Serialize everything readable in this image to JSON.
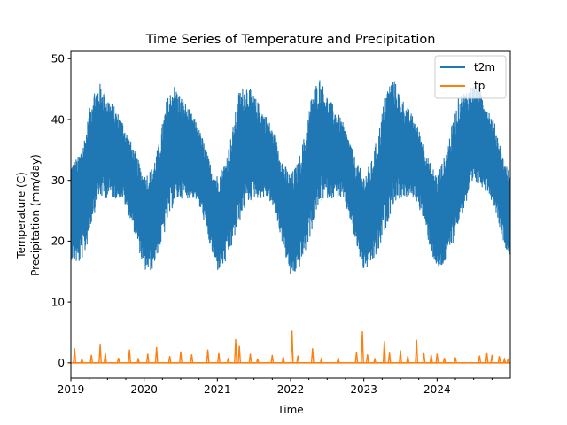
{
  "chart_data": {
    "type": "line",
    "title": "Time Series of Temperature and Precipitation",
    "xlabel": "Time",
    "ylabel_lines": [
      "Temperature (C)",
      "Precipitation (mm/day)"
    ],
    "xlim": [
      2019.0,
      2025.0
    ],
    "ylim": [
      -2.5,
      51.2
    ],
    "xticks": [
      {
        "value": 2019,
        "label": "2019"
      },
      {
        "value": 2020,
        "label": "2020"
      },
      {
        "value": 2021,
        "label": "2021"
      },
      {
        "value": 2022,
        "label": "2022"
      },
      {
        "value": 2023,
        "label": "2023"
      },
      {
        "value": 2024,
        "label": "2024"
      }
    ],
    "yticks": [
      {
        "value": 0,
        "label": "0"
      },
      {
        "value": 10,
        "label": "10"
      },
      {
        "value": 20,
        "label": "20"
      },
      {
        "value": 30,
        "label": "30"
      },
      {
        "value": 40,
        "label": "40"
      },
      {
        "value": 50,
        "label": "50"
      }
    ],
    "grid": false,
    "legend_position": "top-right",
    "series": [
      {
        "name": "t2m",
        "color": "#1f77b4",
        "style": "hourly band",
        "x": [
          2019.0,
          2019.1,
          2019.2,
          2019.3,
          2019.4,
          2019.5,
          2019.6,
          2019.7,
          2019.8,
          2019.9,
          2020.0,
          2020.1,
          2020.2,
          2020.3,
          2020.4,
          2020.5,
          2020.6,
          2020.7,
          2020.8,
          2020.9,
          2021.0,
          2021.1,
          2021.2,
          2021.3,
          2021.4,
          2021.5,
          2021.6,
          2021.7,
          2021.8,
          2021.9,
          2022.0,
          2022.1,
          2022.2,
          2022.3,
          2022.4,
          2022.5,
          2022.6,
          2022.7,
          2022.8,
          2022.9,
          2023.0,
          2023.1,
          2023.2,
          2023.3,
          2023.4,
          2023.5,
          2023.6,
          2023.7,
          2023.8,
          2023.9,
          2024.0,
          2024.1,
          2024.2,
          2024.3,
          2024.4,
          2024.5,
          2024.6,
          2024.7,
          2024.8,
          2024.9,
          2025.0
        ],
        "low": [
          17,
          16,
          18,
          24,
          27,
          27,
          27,
          27,
          24,
          20,
          15,
          15,
          18,
          22,
          26,
          27,
          27,
          27,
          24,
          19,
          15,
          16,
          19,
          23,
          26,
          27,
          27,
          27,
          24,
          19,
          14,
          15,
          18,
          22,
          26,
          27,
          27,
          27,
          24,
          19,
          15,
          16,
          18,
          22,
          26,
          27,
          27,
          27,
          24,
          19,
          15,
          16,
          19,
          23,
          26,
          29,
          29,
          28,
          25,
          20,
          17
        ],
        "high": [
          33,
          34,
          38,
          45,
          46,
          44,
          42,
          40,
          37,
          34,
          31,
          32,
          36,
          43,
          46,
          44,
          42,
          40,
          37,
          33,
          31,
          33,
          38,
          45,
          46,
          44,
          42,
          40,
          37,
          33,
          31,
          33,
          38,
          45,
          47,
          44,
          42,
          40,
          37,
          33,
          31,
          33,
          38,
          45,
          47,
          44,
          42,
          40,
          37,
          33,
          31,
          34,
          39,
          44,
          45,
          46,
          45,
          42,
          39,
          34,
          31
        ]
      },
      {
        "name": "tp",
        "color": "#ff7f0e",
        "style": "daily line",
        "baseline": 0,
        "spikes": [
          {
            "x": 2019.05,
            "y": 2.4
          },
          {
            "x": 2019.15,
            "y": 0.7
          },
          {
            "x": 2019.28,
            "y": 1.3
          },
          {
            "x": 2019.4,
            "y": 3.0
          },
          {
            "x": 2019.47,
            "y": 1.6
          },
          {
            "x": 2019.65,
            "y": 0.8
          },
          {
            "x": 2019.8,
            "y": 2.2
          },
          {
            "x": 2019.92,
            "y": 0.6
          },
          {
            "x": 2020.05,
            "y": 1.5
          },
          {
            "x": 2020.17,
            "y": 2.6
          },
          {
            "x": 2020.35,
            "y": 1.1
          },
          {
            "x": 2020.5,
            "y": 1.9
          },
          {
            "x": 2020.65,
            "y": 1.4
          },
          {
            "x": 2020.87,
            "y": 2.2
          },
          {
            "x": 2021.02,
            "y": 1.6
          },
          {
            "x": 2021.15,
            "y": 0.8
          },
          {
            "x": 2021.25,
            "y": 3.9
          },
          {
            "x": 2021.3,
            "y": 2.8
          },
          {
            "x": 2021.45,
            "y": 1.5
          },
          {
            "x": 2021.55,
            "y": 0.7
          },
          {
            "x": 2021.75,
            "y": 1.3
          },
          {
            "x": 2021.9,
            "y": 1.0
          },
          {
            "x": 2022.02,
            "y": 5.3
          },
          {
            "x": 2022.1,
            "y": 1.2
          },
          {
            "x": 2022.3,
            "y": 2.4
          },
          {
            "x": 2022.42,
            "y": 0.6
          },
          {
            "x": 2022.65,
            "y": 0.8
          },
          {
            "x": 2022.9,
            "y": 1.8
          },
          {
            "x": 2022.98,
            "y": 5.2
          },
          {
            "x": 2023.05,
            "y": 1.4
          },
          {
            "x": 2023.15,
            "y": 0.6
          },
          {
            "x": 2023.28,
            "y": 3.6
          },
          {
            "x": 2023.35,
            "y": 1.7
          },
          {
            "x": 2023.5,
            "y": 2.1
          },
          {
            "x": 2023.6,
            "y": 1.1
          },
          {
            "x": 2023.72,
            "y": 3.8
          },
          {
            "x": 2023.82,
            "y": 1.6
          },
          {
            "x": 2023.92,
            "y": 1.3
          },
          {
            "x": 2024.0,
            "y": 1.5
          },
          {
            "x": 2024.1,
            "y": 0.8
          },
          {
            "x": 2024.25,
            "y": 0.9
          },
          {
            "x": 2024.58,
            "y": 1.2
          },
          {
            "x": 2024.68,
            "y": 1.6
          },
          {
            "x": 2024.75,
            "y": 1.3
          },
          {
            "x": 2024.85,
            "y": 1.1
          },
          {
            "x": 2024.92,
            "y": 0.6
          },
          {
            "x": 2024.97,
            "y": 0.7
          }
        ]
      }
    ]
  }
}
